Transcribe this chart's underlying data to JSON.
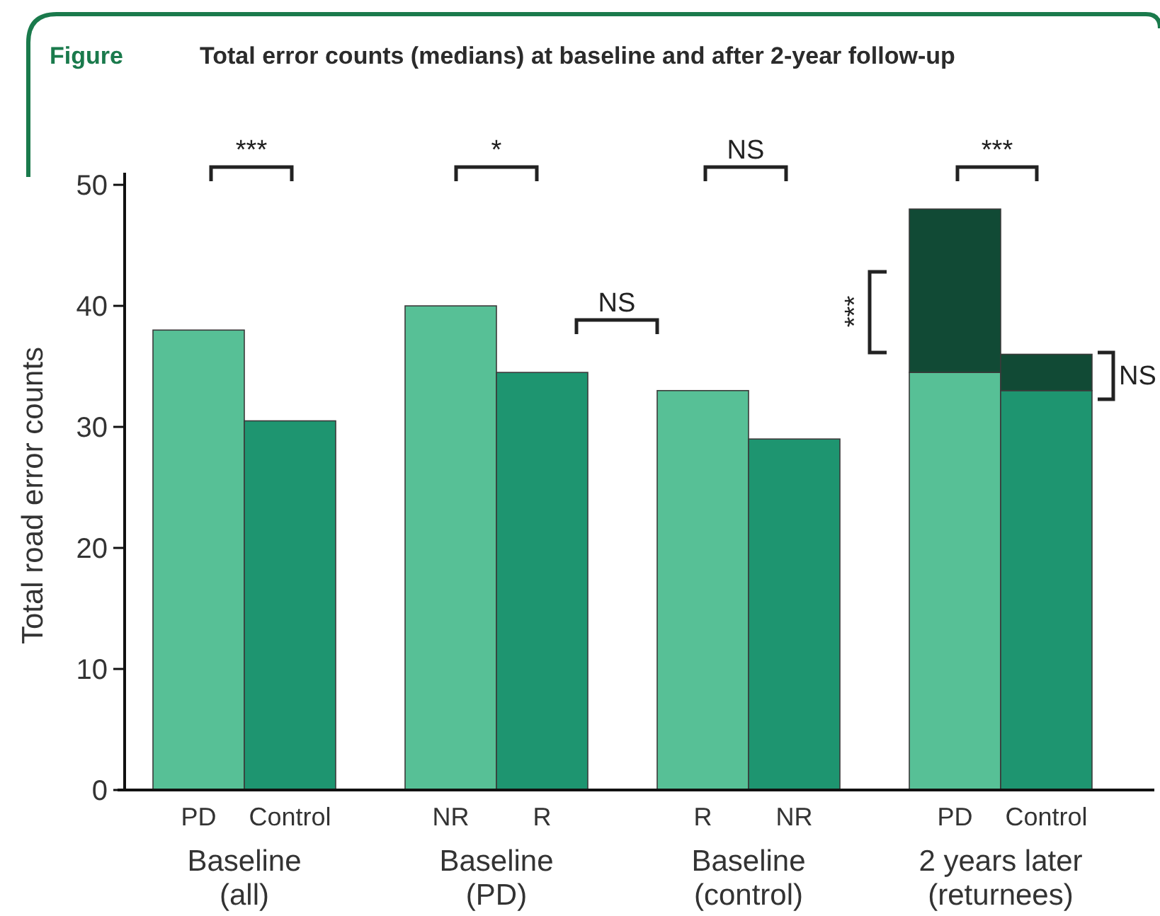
{
  "chart_data": {
    "type": "bar",
    "title": "Total error counts (medians) at baseline and after 2-year follow-up",
    "ylabel": "Total road error counts",
    "stacked": true,
    "categories": [
      "PD",
      "Control",
      "NR",
      "R",
      "R",
      "NR",
      "PD",
      "Control"
    ],
    "series": [
      {
        "colors": [
          "#57c096",
          "#1e9570",
          "#57c096",
          "#1e9570",
          "#57c096",
          "#1e9570",
          "#57c096",
          "#1e9570"
        ],
        "values": [
          38,
          30.5,
          40,
          34.5,
          33,
          29,
          34.5,
          33
        ]
      },
      {
        "color": "#114a35",
        "values": [
          null,
          null,
          null,
          null,
          null,
          null,
          13.5,
          3
        ]
      }
    ],
    "ylim": [
      0,
      51
    ],
    "yticks": [
      0,
      10,
      20,
      30,
      40,
      50
    ],
    "grid": false,
    "annotations": [
      "Figure",
      "***",
      "*",
      "NS",
      "***",
      "NS",
      "***",
      "NS",
      "Baseline\n(all)",
      "Baseline\n(PD)",
      "Baseline\n(control)",
      "2 years later\n(returnees)"
    ]
  }
}
